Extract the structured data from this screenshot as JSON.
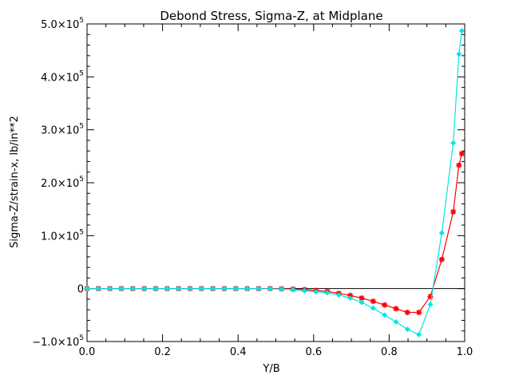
{
  "chart_data": {
    "type": "line",
    "title": "Debond Stress, Sigma-Z, at Midplane",
    "xlabel": "Y/B",
    "ylabel": "Sigma-Z/strain-x,   lb/in**2",
    "xlim": [
      0,
      1
    ],
    "ylim": [
      -100000,
      500000
    ],
    "grid": false,
    "x_ticks": [
      {
        "value": 0.0,
        "label": "0.0"
      },
      {
        "value": 0.2,
        "label": "0.2"
      },
      {
        "value": 0.4,
        "label": "0.4"
      },
      {
        "value": 0.6,
        "label": "0.6"
      },
      {
        "value": 0.8,
        "label": "0.8"
      },
      {
        "value": 1.0,
        "label": "1.0"
      }
    ],
    "y_ticks": [
      {
        "value": -100000,
        "mant": "−1.0×10",
        "exp": "5"
      },
      {
        "value": 0,
        "mant": "0",
        "exp": ""
      },
      {
        "value": 100000,
        "mant": "1.0×10",
        "exp": "5"
      },
      {
        "value": 200000,
        "mant": "2.0×10",
        "exp": "5"
      },
      {
        "value": 300000,
        "mant": "3.0×10",
        "exp": "5"
      },
      {
        "value": 400000,
        "mant": "4.0×10",
        "exp": "5"
      },
      {
        "value": 500000,
        "mant": "5.0×10",
        "exp": "5"
      }
    ],
    "series": [
      {
        "color": "#ff0000",
        "marker": "asterisk",
        "x": [
          0.0,
          0.0303,
          0.0606,
          0.0909,
          0.1212,
          0.1515,
          0.1818,
          0.2121,
          0.2424,
          0.2727,
          0.303,
          0.3333,
          0.3636,
          0.3939,
          0.4242,
          0.4545,
          0.4848,
          0.5152,
          0.5455,
          0.5758,
          0.6061,
          0.6364,
          0.6667,
          0.697,
          0.7273,
          0.7576,
          0.7879,
          0.8182,
          0.8485,
          0.8788,
          0.9091,
          0.9394,
          0.9697,
          0.9848,
          0.9924
        ],
        "y": [
          0,
          0,
          0,
          0,
          0,
          0,
          0,
          0,
          0,
          0,
          0,
          0,
          0,
          0,
          0,
          0,
          0,
          -500,
          -1000,
          -2000,
          -3500,
          -5500,
          -9000,
          -13000,
          -18000,
          -24000,
          -31000,
          -38000,
          -45000,
          -45000,
          -15000,
          55000,
          145000,
          233000,
          255000
        ]
      },
      {
        "color": "#00e5e5",
        "marker": "diamond",
        "x": [
          0.0,
          0.0303,
          0.0606,
          0.0909,
          0.1212,
          0.1515,
          0.1818,
          0.2121,
          0.2424,
          0.2727,
          0.303,
          0.3333,
          0.3636,
          0.3939,
          0.4242,
          0.4545,
          0.4848,
          0.5152,
          0.5455,
          0.5758,
          0.6061,
          0.6364,
          0.6667,
          0.697,
          0.7273,
          0.7576,
          0.7879,
          0.8182,
          0.8485,
          0.8788,
          0.9091,
          0.9394,
          0.9697,
          0.9848,
          0.9924
        ],
        "y": [
          0,
          0,
          0,
          0,
          0,
          0,
          0,
          0,
          0,
          0,
          0,
          0,
          0,
          0,
          0,
          0,
          -500,
          -1000,
          -2000,
          -4000,
          -6000,
          -8000,
          -12000,
          -18000,
          -26000,
          -37000,
          -50000,
          -63000,
          -77000,
          -87000,
          -30000,
          105000,
          275000,
          443000,
          487000
        ]
      }
    ]
  }
}
